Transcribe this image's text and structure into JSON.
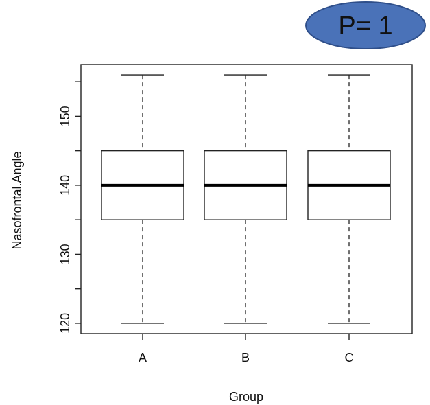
{
  "badge": {
    "text": "P= 1",
    "fill": "#4a72b8",
    "stroke": "#2f4f8a"
  },
  "chart_data": {
    "type": "box",
    "xlabel": "Group",
    "ylabel": "Nasofrontal.Angle",
    "categories": [
      "A",
      "B",
      "C"
    ],
    "ylim": [
      118.5,
      157.5
    ],
    "yticks": [
      120,
      130,
      140,
      150
    ],
    "yminor_ticks": [
      125,
      135,
      145,
      155
    ],
    "grid": false,
    "boxes": [
      {
        "category": "A",
        "min": 120,
        "q1": 135,
        "median": 140,
        "q3": 145,
        "max": 156
      },
      {
        "category": "B",
        "min": 120,
        "q1": 135,
        "median": 140,
        "q3": 145,
        "max": 156
      },
      {
        "category": "C",
        "min": 120,
        "q1": 135,
        "median": 140,
        "q3": 145,
        "max": 156
      }
    ]
  }
}
